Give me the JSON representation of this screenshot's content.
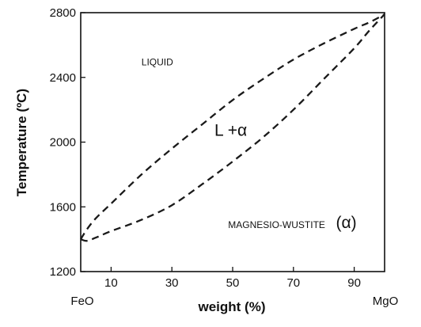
{
  "chart_data": {
    "type": "line",
    "title": "",
    "xlabel": "weight (%)",
    "ylabel": "Temperature (ºC)",
    "xlim": [
      0,
      100
    ],
    "ylim": [
      1200,
      2800
    ],
    "x_ticks": [
      10,
      30,
      50,
      70,
      90
    ],
    "y_ticks": [
      1200,
      1600,
      2000,
      2400,
      2800
    ],
    "x_end_labels": {
      "left": "FeO",
      "right": "MgO"
    },
    "grid": false,
    "series": [
      {
        "style": "dashed",
        "x": [
          0,
          2,
          5,
          10,
          20,
          30,
          40,
          50,
          60,
          70,
          80,
          90,
          95,
          100
        ],
        "y": [
          1400,
          1460,
          1530,
          1620,
          1800,
          1960,
          2110,
          2260,
          2390,
          2510,
          2610,
          2700,
          2740,
          2790
        ]
      },
      {
        "style": "dashed",
        "x": [
          0,
          2,
          5,
          10,
          20,
          30,
          40,
          50,
          60,
          70,
          80,
          90,
          95,
          100
        ],
        "y": [
          1400,
          1390,
          1410,
          1450,
          1520,
          1610,
          1740,
          1880,
          2030,
          2200,
          2390,
          2580,
          2690,
          2790
        ]
      }
    ],
    "annotations": [
      {
        "text": "LIQUID",
        "x": 20,
        "y": 2475,
        "size": "small"
      },
      {
        "text": "L +α",
        "x": 44,
        "y": 2040,
        "size": "big"
      },
      {
        "text": "MAGNESIO-WUSTITE",
        "x": 48.5,
        "y": 1470,
        "size": "small"
      },
      {
        "text": "(α)",
        "x": 84,
        "y": 1470,
        "size": "big"
      }
    ]
  }
}
